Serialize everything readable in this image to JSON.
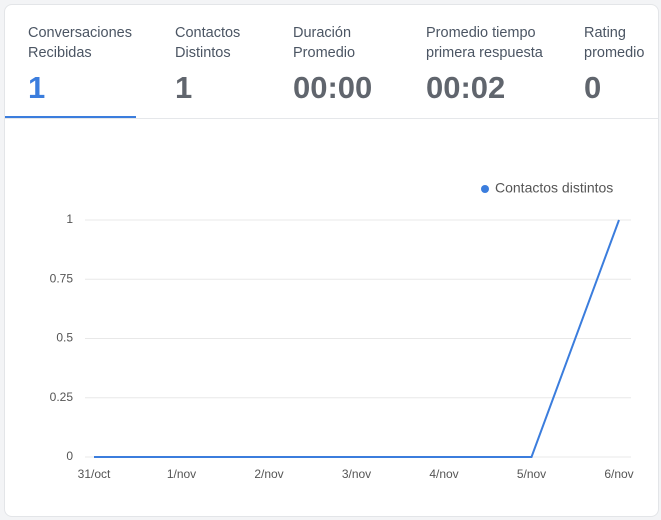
{
  "tabs": [
    {
      "label": "Conversaciones Recibidas",
      "value": "1"
    },
    {
      "label": "Contactos Distintos",
      "value": "1"
    },
    {
      "label": "Duración Promedio",
      "value": "00:00"
    },
    {
      "label": "Promedio tiempo primera respuesta",
      "value": "00:02"
    },
    {
      "label": "Rating promedio",
      "value": "0"
    }
  ],
  "chart_data": {
    "type": "line",
    "categories": [
      "31/oct",
      "1/nov",
      "2/nov",
      "3/nov",
      "4/nov",
      "5/nov",
      "6/nov"
    ],
    "series": [
      {
        "name": "Contactos distintos",
        "color": "#3b7ddd",
        "values": [
          0,
          0,
          0,
          0,
          0,
          0,
          1
        ]
      }
    ],
    "ylim": [
      0,
      1
    ],
    "yticks": [
      0,
      0.25,
      0.5,
      0.75,
      1
    ],
    "grid": true,
    "legend": "top-right"
  }
}
